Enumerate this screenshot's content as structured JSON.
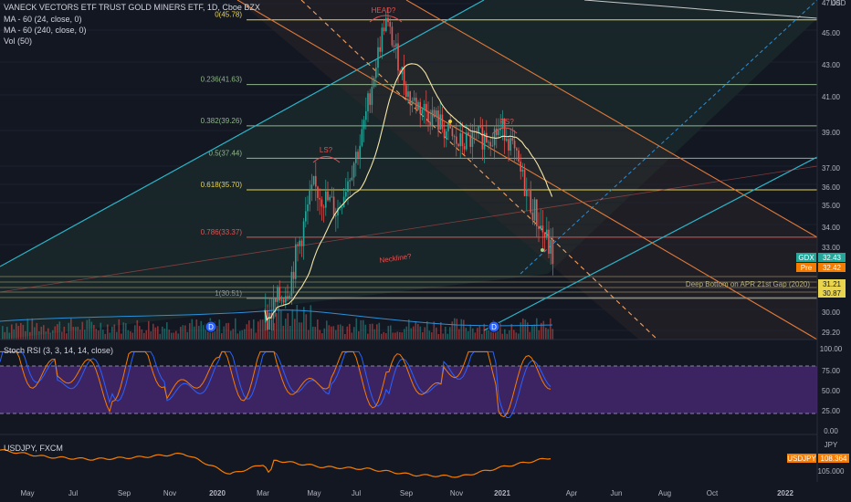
{
  "main_pane": {
    "title": "VANECK VECTORS ETF TRUST GOLD MINERS ETF, 1D, Cboe BZX",
    "indicators": [
      "MA - 60 (24, close, 0)",
      "MA - 60 (240, close, 0)",
      "Vol (50)"
    ],
    "currency": "USD",
    "price_axis": [
      "47.00",
      "45.00",
      "43.00",
      "41.00",
      "39.00",
      "37.00",
      "36.00",
      "35.00",
      "34.00",
      "33.00",
      "30.00",
      "29.20"
    ],
    "fib_levels": [
      {
        "label": "0(45.78)",
        "value": 45.78,
        "color": "#e8d44d"
      },
      {
        "label": "0.236(41.63)",
        "value": 41.63,
        "color": "#8fb58a"
      },
      {
        "label": "0.382(39.26)",
        "value": 39.26,
        "color": "#8fb58a"
      },
      {
        "label": "0.5(37.44)",
        "value": 37.44,
        "color": "#8fb58a"
      },
      {
        "label": "0.618(35.70)",
        "value": 35.7,
        "color": "#e8d44d"
      },
      {
        "label": "0.786(33.37)",
        "value": 33.37,
        "color": "#e05252"
      },
      {
        "label": "1(30.51)",
        "value": 30.51,
        "color": "#8a9099"
      }
    ],
    "annotations": {
      "head": "HEAD?",
      "left_shoulder": "LS?",
      "right_shoulder": "RS?",
      "neckline": "Neckline?",
      "gap_note": "Deep Bottom on APR 21st Gap (2020)"
    },
    "price_tags": [
      {
        "label": "GDX",
        "value": "32.43",
        "color": "#26a69a"
      },
      {
        "label": "Pre",
        "value": "32.42",
        "color": "#f57c00"
      },
      {
        "label": "",
        "value": "31.21",
        "color": "#e8d44d"
      },
      {
        "label": "",
        "value": "30.87",
        "color": "#e8d44d"
      }
    ],
    "dividend_marker": "D"
  },
  "rsi_pane": {
    "title": "Stoch RSI (3, 3, 14, 14, close)",
    "axis": [
      "100.00",
      "75.00",
      "50.00",
      "25.00",
      "0.00"
    ],
    "upper_band": 80,
    "lower_band": 20
  },
  "fx_pane": {
    "title": "USDJPY, FXCM",
    "axis_top": "JPY",
    "axis": [
      "105.000"
    ],
    "tag": {
      "label": "USDJPY",
      "value": "108.364",
      "color": "#f57c00"
    }
  },
  "time_axis": [
    "May",
    "Jul",
    "Sep",
    "Nov",
    "2020",
    "Mar",
    "May",
    "Jul",
    "Sep",
    "Nov",
    "2021",
    "Apr",
    "Jun",
    "Aug",
    "Oct",
    "2022"
  ],
  "chart_data": {
    "type": "line",
    "title": "VANECK VECTORS ETF TRUST GOLD MINERS ETF, 1D, Cboe BZX",
    "xlabel": "",
    "ylabel": "USD",
    "ylim": [
      29.2,
      47.0
    ],
    "grid": true,
    "x": [
      "2020-03",
      "2020-04",
      "2020-05",
      "2020-06",
      "2020-07",
      "2020-08",
      "2020-09",
      "2020-10",
      "2020-11",
      "2020-12",
      "2021-01",
      "2021-02",
      "2021-03"
    ],
    "series": [
      {
        "name": "GDX",
        "values": [
          29.5,
          31.2,
          35.8,
          34.6,
          38.5,
          45.78,
          40.8,
          39.8,
          38.2,
          38.6,
          39.1,
          35.2,
          32.43
        ]
      }
    ],
    "x_labels_2": [
      "2019-05",
      "2019-07",
      "2019-09",
      "2019-11",
      "2020-01",
      "2020-03",
      "2020-05",
      "2020-07",
      "2020-09",
      "2020-11",
      "2021-01"
    ],
    "stoch_rsi": [
      {
        "name": "K",
        "values": [
          88,
          22,
          75,
          18,
          82,
          30,
          60,
          15,
          90,
          20,
          70
        ]
      },
      {
        "name": "D",
        "values": [
          80,
          30,
          70,
          25,
          76,
          35,
          55,
          22,
          84,
          26,
          65
        ]
      }
    ],
    "usdjpy": {
      "name": "USDJPY",
      "values": [
        110.2,
        108.5,
        107.9,
        108.4,
        109.3,
        104.2,
        107.6,
        106.0,
        105.5,
        104.0,
        103.6,
        106.2,
        108.364
      ]
    }
  }
}
